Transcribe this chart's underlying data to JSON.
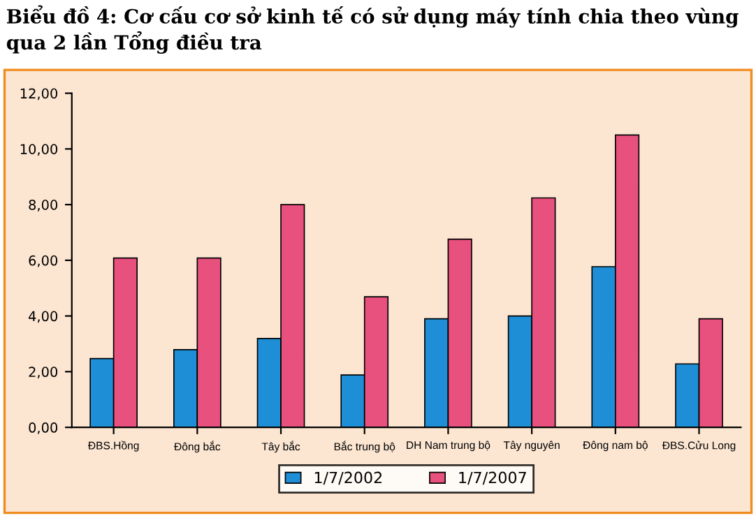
{
  "chart_data": {
    "type": "bar",
    "title": "Biểu đồ 4: Cơ cấu cơ sở kinh tế có sử dụng máy tính chia theo vùng qua 2 lần Tổng điều tra",
    "categories": [
      "ĐBS.Hồng",
      "Đông bắc",
      "Tây bắc",
      "Bắc trung bộ",
      "DH Nam trung bộ",
      "Tây nguyên",
      "Đông nam bộ",
      "ĐBS.Cửu Long"
    ],
    "series": [
      {
        "name": "1/7/2002",
        "color": "#1e8fd6",
        "values": [
          2.47,
          2.79,
          3.19,
          1.88,
          3.9,
          4.0,
          5.77,
          2.28
        ]
      },
      {
        "name": "1/7/2007",
        "color": "#e8507e",
        "values": [
          6.08,
          6.08,
          8.0,
          4.69,
          6.76,
          8.24,
          10.5,
          3.9
        ]
      }
    ],
    "ylim": [
      0,
      12
    ],
    "yticks": [
      {
        "value": 0,
        "label": "0,00"
      },
      {
        "value": 2,
        "label": "2,00"
      },
      {
        "value": 4,
        "label": "4,00"
      },
      {
        "value": 6,
        "label": "6,00"
      },
      {
        "value": 8,
        "label": "8,00"
      },
      {
        "value": 10,
        "label": "10,00"
      },
      {
        "value": 12,
        "label": "12,00"
      }
    ],
    "grid": false,
    "legend": "bottom"
  }
}
